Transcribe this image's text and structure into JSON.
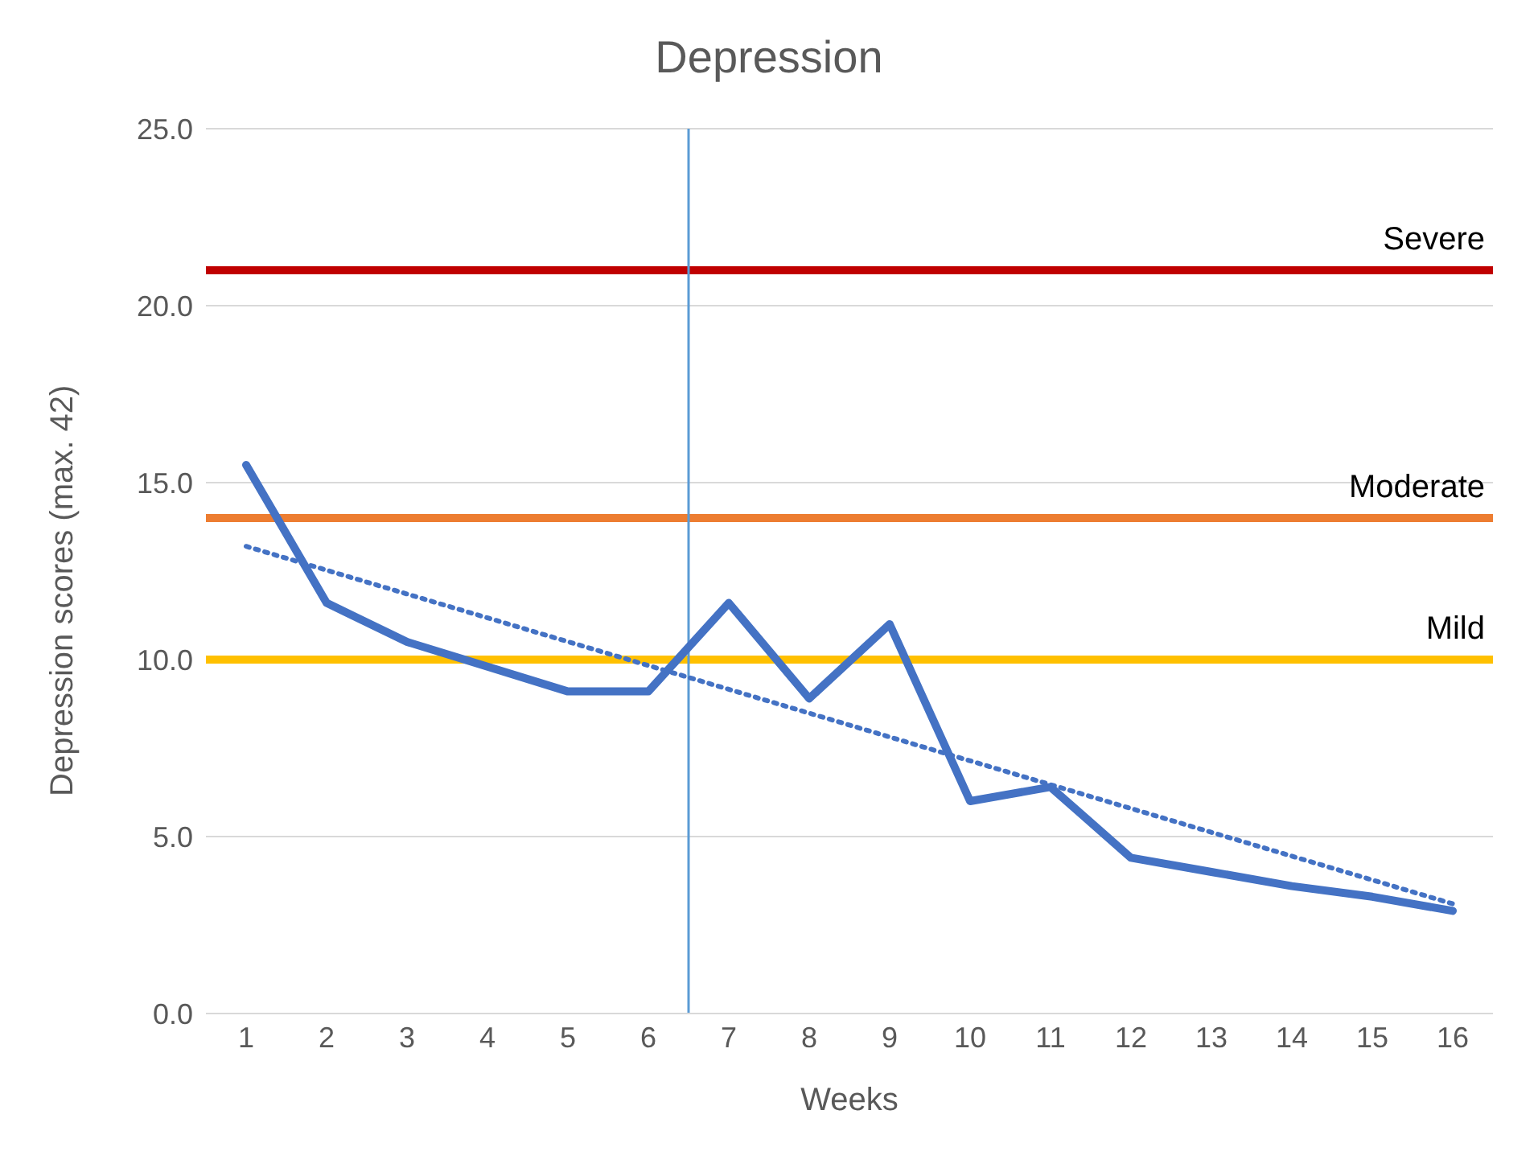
{
  "chart_data": {
    "type": "line",
    "title": "Depression",
    "xlabel": "Weeks",
    "ylabel": "Depression scores (max. 42)",
    "x": [
      1,
      2,
      3,
      4,
      5,
      6,
      7,
      8,
      9,
      10,
      11,
      12,
      13,
      14,
      15,
      16
    ],
    "series": [
      {
        "color": "#4472c4",
        "values": [
          15.5,
          11.6,
          10.5,
          9.8,
          9.1,
          9.1,
          11.6,
          8.9,
          11.0,
          6.0,
          6.4,
          4.4,
          4.0,
          3.6,
          3.3,
          2.9
        ]
      },
      {
        "type": "line",
        "color": "#4472c4",
        "line_style": "dotted",
        "x": [
          1,
          16
        ],
        "values": [
          13.2,
          3.1
        ]
      }
    ],
    "xlim": [
      0.5,
      16.5
    ],
    "xticks": [
      1,
      2,
      3,
      4,
      5,
      6,
      7,
      8,
      9,
      10,
      11,
      12,
      13,
      14,
      15,
      16
    ],
    "ylim": [
      0,
      25
    ],
    "yticks": [
      {
        "value": 0,
        "label": "0.0"
      },
      {
        "value": 5,
        "label": "5.0"
      },
      {
        "value": 10,
        "label": "10.0"
      },
      {
        "value": 15,
        "label": "15.0"
      },
      {
        "value": 20,
        "label": "20.0"
      },
      {
        "value": 25,
        "label": "25.0"
      }
    ],
    "ref_lines": [
      {
        "axis": "y",
        "value": 21,
        "label": "Severe",
        "color": "#c00000"
      },
      {
        "axis": "y",
        "value": 14,
        "label": "Moderate",
        "color": "#ed7d31"
      },
      {
        "axis": "y",
        "value": 10,
        "label": "Mild",
        "color": "#ffc000"
      },
      {
        "axis": "x",
        "value": 6.5,
        "color": "#5b9bd5"
      }
    ],
    "grid": "y",
    "legend": false,
    "marker": "none",
    "line_style": "solid"
  }
}
